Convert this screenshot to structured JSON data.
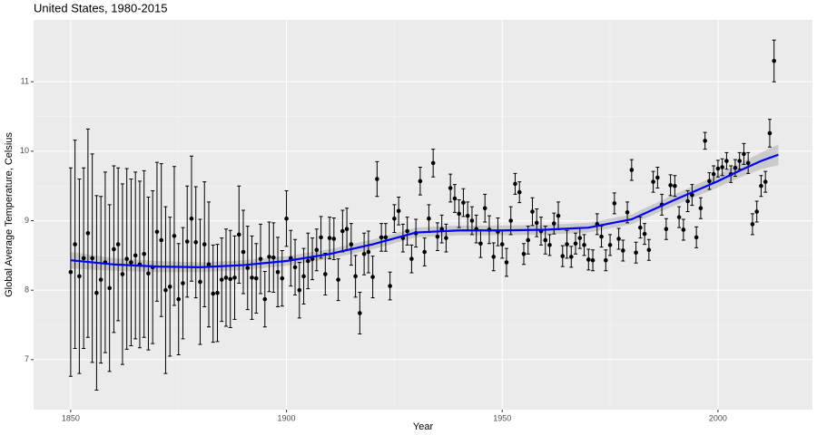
{
  "chart_data": {
    "type": "scatter",
    "title": "United States, 1980-2015",
    "x_label": "Year",
    "y_label": "Global Average Temperature, Celsius",
    "xlim": [
      1841.4,
      2021.9
    ],
    "ylim": [
      6.28,
      11.89
    ],
    "xticks": [
      1850,
      1900,
      1950,
      2000
    ],
    "yticks": [
      7,
      8,
      9,
      10,
      11
    ],
    "grid": true,
    "series": [
      {
        "color": "#000000",
        "x": [
          1850,
          1851,
          1852,
          1853,
          1854,
          1855,
          1856,
          1857,
          1858,
          1859,
          1860,
          1861,
          1862,
          1863,
          1864,
          1865,
          1866,
          1867,
          1868,
          1869,
          1870,
          1871,
          1872,
          1873,
          1874,
          1875,
          1876,
          1877,
          1878,
          1879,
          1880,
          1881,
          1882,
          1883,
          1884,
          1885,
          1886,
          1887,
          1888,
          1889,
          1890,
          1891,
          1892,
          1893,
          1894,
          1895,
          1896,
          1897,
          1898,
          1899,
          1900,
          1901,
          1902,
          1903,
          1904,
          1905,
          1906,
          1907,
          1908,
          1909,
          1910,
          1911,
          1912,
          1913,
          1914,
          1915,
          1916,
          1917,
          1918,
          1919,
          1920,
          1921,
          1922,
          1923,
          1924,
          1925,
          1926,
          1927,
          1928,
          1929,
          1930,
          1931,
          1932,
          1933,
          1934,
          1935,
          1936,
          1937,
          1938,
          1939,
          1940,
          1941,
          1942,
          1943,
          1944,
          1945,
          1946,
          1947,
          1948,
          1949,
          1950,
          1951,
          1952,
          1953,
          1954,
          1955,
          1956,
          1957,
          1958,
          1959,
          1960,
          1961,
          1962,
          1963,
          1964,
          1965,
          1966,
          1967,
          1968,
          1969,
          1970,
          1971,
          1972,
          1973,
          1974,
          1975,
          1976,
          1977,
          1978,
          1979,
          1980,
          1981,
          1982,
          1983,
          1984,
          1985,
          1986,
          1987,
          1988,
          1989,
          1990,
          1991,
          1992,
          1993,
          1994,
          1995,
          1996,
          1997,
          1998,
          1999,
          2000,
          2001,
          2002,
          2003,
          2004,
          2005,
          2006,
          2007,
          2008,
          2009,
          2010,
          2011,
          2012,
          2013
        ],
        "values": [
          8.26,
          8.66,
          8.2,
          8.46,
          8.82,
          8.46,
          7.96,
          8.15,
          8.4,
          8.03,
          8.59,
          8.66,
          8.23,
          8.45,
          8.4,
          8.5,
          8.37,
          8.52,
          8.24,
          8.33,
          8.84,
          8.72,
          8.0,
          8.05,
          8.78,
          7.87,
          8.1,
          8.7,
          9.03,
          8.69,
          8.12,
          8.66,
          8.37,
          7.95,
          7.96,
          8.15,
          8.18,
          8.16,
          8.18,
          8.8,
          8.55,
          8.32,
          8.18,
          8.17,
          8.45,
          7.87,
          8.48,
          8.47,
          8.26,
          8.17,
          9.03,
          8.46,
          8.33,
          8.0,
          8.2,
          8.42,
          8.45,
          8.58,
          8.76,
          8.23,
          8.75,
          8.74,
          8.15,
          8.85,
          8.88,
          8.66,
          8.2,
          7.67,
          8.52,
          8.55,
          8.19,
          9.6,
          8.76,
          8.76,
          8.06,
          9.03,
          9.14,
          8.75,
          8.85,
          8.45,
          8.82,
          9.57,
          8.55,
          9.03,
          9.83,
          8.77,
          8.88,
          8.75,
          9.47,
          9.32,
          9.1,
          9.26,
          9.07,
          9.0,
          8.88,
          8.67,
          9.18,
          8.87,
          8.48,
          8.84,
          8.66,
          8.4,
          9.0,
          9.53,
          9.41,
          8.52,
          8.72,
          9.13,
          8.97,
          8.85,
          8.72,
          8.65,
          8.96,
          9.07,
          8.49,
          8.66,
          8.48,
          8.67,
          8.75,
          8.65,
          8.44,
          8.43,
          8.95,
          8.77,
          8.43,
          8.65,
          9.25,
          8.74,
          8.57,
          9.12,
          9.73,
          8.54,
          8.9,
          8.81,
          8.58,
          9.56,
          9.62,
          9.23,
          8.88,
          9.51,
          9.5,
          9.05,
          8.87,
          9.28,
          9.37,
          8.76,
          9.18,
          10.15,
          9.57,
          9.67,
          9.75,
          9.77,
          9.86,
          9.67,
          9.76,
          9.86,
          9.96,
          9.83,
          8.95,
          9.13,
          9.5,
          9.56,
          10.26,
          11.3
        ],
        "errors": [
          1.5,
          1.5,
          1.4,
          1.3,
          1.5,
          1.5,
          1.4,
          1.2,
          1.3,
          1.2,
          1.2,
          1.1,
          1.3,
          1.3,
          1.2,
          1.2,
          1.2,
          1.2,
          1.1,
          1.1,
          1.0,
          1.1,
          1.2,
          1.0,
          1.0,
          0.8,
          0.8,
          0.8,
          0.9,
          0.8,
          0.9,
          0.9,
          0.9,
          0.7,
          0.7,
          0.6,
          0.7,
          0.7,
          0.6,
          0.7,
          0.6,
          0.6,
          0.6,
          0.5,
          0.5,
          0.4,
          0.5,
          0.5,
          0.5,
          0.4,
          0.4,
          0.4,
          0.4,
          0.4,
          0.4,
          0.4,
          0.3,
          0.3,
          0.3,
          0.3,
          0.3,
          0.3,
          0.3,
          0.3,
          0.3,
          0.3,
          0.3,
          0.3,
          0.3,
          0.3,
          0.3,
          0.25,
          0.2,
          0.2,
          0.2,
          0.2,
          0.2,
          0.2,
          0.2,
          0.2,
          0.2,
          0.2,
          0.2,
          0.2,
          0.2,
          0.2,
          0.2,
          0.2,
          0.2,
          0.2,
          0.2,
          0.2,
          0.2,
          0.2,
          0.2,
          0.2,
          0.2,
          0.2,
          0.2,
          0.2,
          0.2,
          0.2,
          0.2,
          0.15,
          0.15,
          0.15,
          0.2,
          0.2,
          0.2,
          0.2,
          0.2,
          0.15,
          0.15,
          0.2,
          0.15,
          0.2,
          0.15,
          0.15,
          0.15,
          0.15,
          0.15,
          0.15,
          0.15,
          0.15,
          0.15,
          0.15,
          0.15,
          0.15,
          0.15,
          0.15,
          0.15,
          0.15,
          0.15,
          0.15,
          0.15,
          0.15,
          0.15,
          0.15,
          0.15,
          0.15,
          0.15,
          0.15,
          0.15,
          0.15,
          0.15,
          0.15,
          0.15,
          0.12,
          0.12,
          0.12,
          0.12,
          0.12,
          0.12,
          0.12,
          0.12,
          0.12,
          0.15,
          0.15,
          0.15,
          0.15,
          0.15,
          0.15,
          0.2,
          0.3
        ]
      }
    ],
    "trend": {
      "color": "#0000ff",
      "x": [
        1850,
        1860,
        1870,
        1880,
        1890,
        1900,
        1910,
        1920,
        1930,
        1940,
        1950,
        1960,
        1970,
        1980,
        1990,
        2000,
        2005,
        2010,
        2014
      ],
      "values": [
        8.43,
        8.37,
        8.34,
        8.33,
        8.36,
        8.42,
        8.52,
        8.66,
        8.83,
        8.86,
        8.86,
        8.87,
        8.9,
        9.02,
        9.3,
        9.57,
        9.72,
        9.86,
        9.95
      ],
      "se": [
        0.12,
        0.09,
        0.08,
        0.07,
        0.07,
        0.07,
        0.07,
        0.07,
        0.07,
        0.07,
        0.07,
        0.07,
        0.07,
        0.07,
        0.08,
        0.09,
        0.1,
        0.12,
        0.15
      ]
    }
  }
}
